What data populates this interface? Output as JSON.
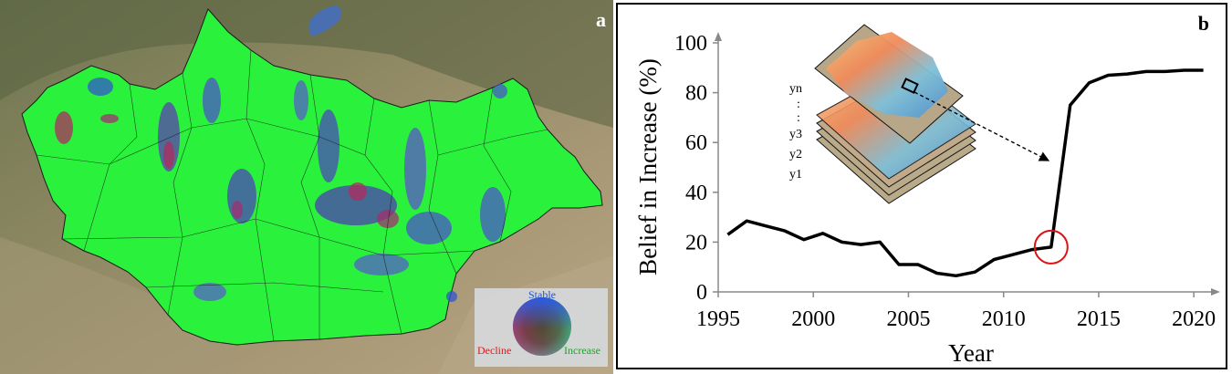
{
  "panel_a": {
    "label": "a",
    "legend": {
      "stable": "Stable",
      "decline": "Decline",
      "increase": "Increase"
    },
    "colors": {
      "increase": "#33ee44",
      "stable": "#3355cc",
      "decline": "#cc2244"
    }
  },
  "panel_b": {
    "label": "b",
    "inset_labels": [
      "yn",
      ":",
      ":",
      "y3",
      "y2",
      "y1"
    ]
  },
  "chart_data": {
    "type": "line",
    "title": "",
    "xlabel": "Year",
    "ylabel": "Belief in Increase (%)",
    "xlim": [
      1995,
      2021
    ],
    "ylim": [
      0,
      100
    ],
    "xticks": [
      1995,
      2000,
      2005,
      2010,
      2015,
      2020
    ],
    "yticks": [
      0,
      20,
      40,
      60,
      80,
      100
    ],
    "grid": false,
    "series": [
      {
        "color": "#000000",
        "x": [
          1995.5,
          1996.5,
          1997.5,
          1998.5,
          1999.5,
          2000.5,
          2001.5,
          2002.5,
          2003.5,
          2004.5,
          2005.5,
          2006.5,
          2007.5,
          2008.5,
          2009.5,
          2010.5,
          2011.5,
          2012.5,
          2013.5,
          2014.5,
          2015.5,
          2016.5,
          2017.5,
          2018.5,
          2019.5,
          2020.5
        ],
        "y": [
          23,
          28.5,
          26.5,
          24.5,
          21,
          23.5,
          20,
          19,
          20,
          11,
          11,
          7.5,
          6.5,
          8,
          13,
          15,
          17,
          18,
          75,
          84,
          87,
          87.5,
          88.5,
          88.5,
          89,
          89
        ]
      }
    ],
    "annotations": [
      {
        "type": "circle",
        "x": 2012.5,
        "y": 18,
        "color": "#dd1111"
      },
      {
        "type": "arrow",
        "from": "inset-pixel",
        "to_x": 2012.3,
        "to_y": 53
      }
    ]
  }
}
